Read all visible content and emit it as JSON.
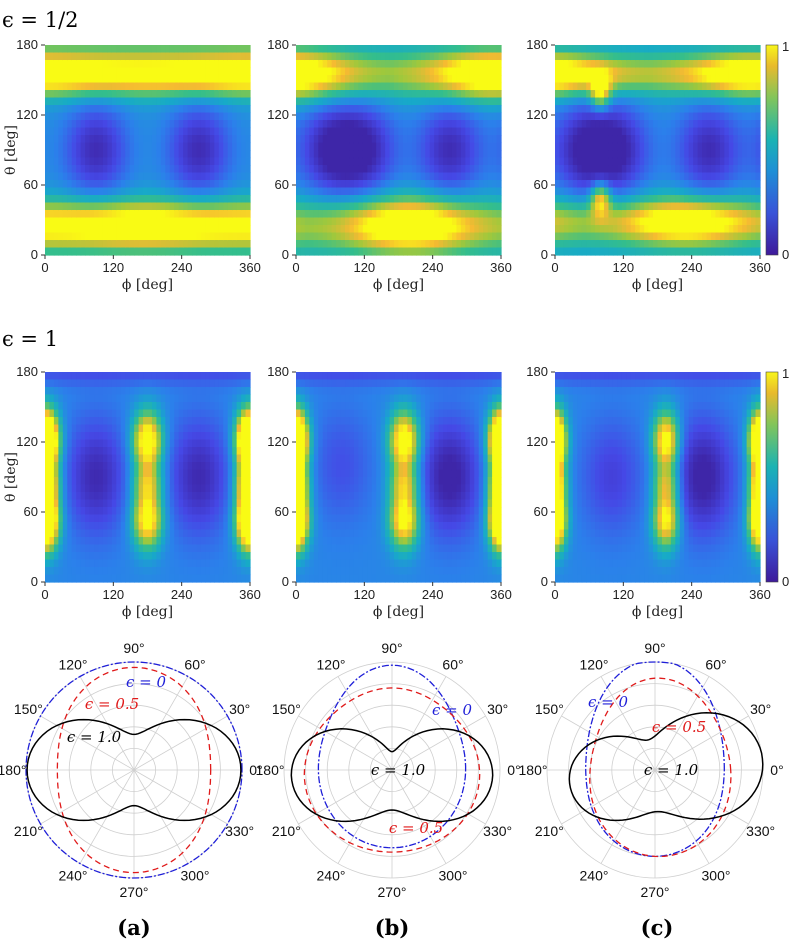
{
  "chart_data": {
    "type": "heatmap",
    "rows": [
      {
        "label": "ϵ = 1/2",
        "xlabel": "ϕ [deg]",
        "ylabel": "θ [deg]",
        "xticks": [
          "0",
          "120",
          "240",
          "360"
        ],
        "yticks": [
          "0",
          "60",
          "120",
          "180"
        ],
        "xlim": [
          0,
          360
        ],
        "ylim": [
          0,
          180
        ],
        "colorbar": {
          "min": "0",
          "max": "1"
        },
        "panels": [
          {
            "id": "a",
            "bands": [
              {
                "theta": 25,
                "width": 14,
                "amp": 0.85,
                "phi_peak": 170,
                "mod": 0.15
              },
              {
                "theta": 155,
                "width": 12,
                "amp": 0.85,
                "phi_peak": 350,
                "mod": 0.12
              },
              {
                "theta": 180,
                "width": 10,
                "amp": 0.15,
                "phi_peak": 0,
                "mod": 0.0
              }
            ],
            "wells": [
              {
                "phi": 90,
                "theta": 90,
                "depth": 0.35
              },
              {
                "phi": 270,
                "theta": 90,
                "depth": 0.35
              }
            ]
          },
          {
            "id": "b",
            "bands": [
              {
                "theta": 25,
                "width": 16,
                "amp": 0.9,
                "phi_peak": 200,
                "mod": 0.6
              },
              {
                "theta": 155,
                "width": 14,
                "amp": 0.9,
                "phi_peak": 345,
                "mod": 0.6
              }
            ],
            "wells": [
              {
                "phi": 60,
                "theta": 90,
                "depth": 0.35
              },
              {
                "phi": 120,
                "theta": 90,
                "depth": 0.35
              },
              {
                "phi": 270,
                "theta": 90,
                "depth": 0.35
              }
            ]
          },
          {
            "id": "c",
            "bands": [
              {
                "theta": 28,
                "width": 14,
                "amp": 0.85,
                "phi_peak": 230,
                "mod": 0.55
              },
              {
                "theta": 155,
                "width": 12,
                "amp": 0.9,
                "phi_peak": 345,
                "mod": 0.55
              }
            ],
            "wells": [
              {
                "phi": 50,
                "theta": 90,
                "depth": 0.35
              },
              {
                "phi": 110,
                "theta": 90,
                "depth": 0.35
              },
              {
                "phi": 270,
                "theta": 90,
                "depth": 0.35
              }
            ],
            "spots": [
              {
                "phi": 80,
                "theta": 140,
                "amp": 0.55
              },
              {
                "phi": 80,
                "theta": 48,
                "amp": 0.55
              }
            ]
          }
        ]
      },
      {
        "label": "ϵ = 1",
        "xlabel": "ϕ [deg]",
        "ylabel": "θ [deg]",
        "xticks": [
          "0",
          "120",
          "240",
          "360"
        ],
        "yticks": [
          "0",
          "60",
          "120",
          "180"
        ],
        "xlim": [
          0,
          360
        ],
        "ylim": [
          0,
          180
        ],
        "colorbar": {
          "min": "0",
          "max": "1"
        },
        "panels": [
          {
            "id": "a",
            "columns": [
              {
                "phi": 180,
                "width": 18,
                "amp": 0.95
              },
              {
                "phi": 360,
                "width": 16,
                "amp": 0.85
              },
              {
                "phi": 0,
                "width": 16,
                "amp": 0.85
              }
            ],
            "wells": [
              {
                "phi": 90,
                "theta": 90,
                "depth": 0.3
              },
              {
                "phi": 270,
                "theta": 90,
                "depth": 0.3
              }
            ]
          },
          {
            "id": "b",
            "columns": [
              {
                "phi": 190,
                "width": 18,
                "amp": 0.95
              },
              {
                "phi": 360,
                "width": 16,
                "amp": 0.9
              },
              {
                "phi": 0,
                "width": 12,
                "amp": 0.75
              }
            ],
            "wells": [
              {
                "phi": 270,
                "theta": 90,
                "depth": 0.35
              },
              {
                "phi": 80,
                "theta": 100,
                "depth": 0.15
              }
            ]
          },
          {
            "id": "c",
            "columns": [
              {
                "phi": 195,
                "width": 16,
                "amp": 0.9
              },
              {
                "phi": 360,
                "width": 14,
                "amp": 0.8
              },
              {
                "phi": 0,
                "width": 12,
                "amp": 0.6
              }
            ],
            "wells": [
              {
                "phi": 260,
                "theta": 90,
                "depth": 0.35
              },
              {
                "phi": 100,
                "theta": 90,
                "depth": 0.2
              }
            ]
          }
        ]
      }
    ],
    "polar": {
      "type": "polar-line",
      "angle_ticks": [
        "0°",
        "30°",
        "60°",
        "90°",
        "120°",
        "150°",
        "180°",
        "210°",
        "240°",
        "270°",
        "300°",
        "330°"
      ],
      "angles_deg": [
        0,
        30,
        60,
        90,
        120,
        150,
        180,
        210,
        240,
        270,
        300,
        330
      ],
      "series_style": [
        {
          "name": "ϵ = 0",
          "color": "#1f1fd8",
          "dash": "7 2 2 2"
        },
        {
          "name": "ϵ = 0.5",
          "color": "#e01a1a",
          "dash": "6 4"
        },
        {
          "name": "ϵ = 1.0",
          "color": "#000000",
          "dash": ""
        }
      ],
      "panels": [
        {
          "id": "a",
          "sublabel": "(a)",
          "labels": [
            {
              "text": "ϵ = 0",
              "color": "#1f1fd8"
            },
            {
              "text": "ϵ = 0.5",
              "color": "#e01a1a"
            },
            {
              "text": "ϵ = 1.0",
              "color": "#000000"
            }
          ],
          "series": [
            {
              "name": "ϵ = 0",
              "model": {
                "a0": 1.0,
                "a2": 0.0,
                "a1s": 0.0,
                "a1c": 0.0
              }
            },
            {
              "name": "ϵ = 0.5",
              "model": {
                "a0": 0.83,
                "a2": -0.12,
                "a1s": 0.0,
                "a1c": 0.0
              }
            },
            {
              "name": "ϵ = 1.0",
              "model": {
                "a0": 0.66,
                "a2": 0.33,
                "a1s": 0.0,
                "a1c": 0.0
              }
            }
          ]
        },
        {
          "id": "b",
          "sublabel": "(b)",
          "labels": [
            {
              "text": "ϵ = 0",
              "color": "#1f1fd8"
            },
            {
              "text": "ϵ = 0.5",
              "color": "#e01a1a"
            },
            {
              "text": "ϵ = 1.0",
              "color": "#000000"
            }
          ],
          "series": [
            {
              "name": "ϵ = 0",
              "model": {
                "a0": 0.7,
                "a2": -0.02,
                "a1s": 0.0,
                "a1c": 0.0,
                "a4": 0.25
              }
            },
            {
              "name": "ϵ = 0.5",
              "model": {
                "a0": 0.76,
                "a2": 0.05,
                "a1s": -0.05,
                "a1c": 0.0,
                "a4": 0.1
              }
            },
            {
              "name": "ϵ = 1.0",
              "model": {
                "a0": 0.6,
                "a2": 0.33,
                "a1s": -0.1,
                "a1c": 0.0
              }
            }
          ]
        },
        {
          "id": "c",
          "sublabel": "(c)",
          "labels": [
            {
              "text": "ϵ = 0",
              "color": "#1f1fd8"
            },
            {
              "text": "ϵ = 0.5",
              "color": "#e01a1a"
            },
            {
              "text": "ϵ = 1.0",
              "color": "#000000"
            }
          ],
          "series": [
            {
              "name": "ϵ = 0",
              "model": {
                "a0": 0.72,
                "a2": -0.08,
                "a1s": 0.0,
                "a1c": 0.0,
                "a4": 0.22
              }
            },
            {
              "name": "ϵ = 0.5",
              "model": {
                "a0": 0.7,
                "a2": -0.05,
                "a1s": -0.05,
                "a1c": 0.05,
                "a4": 0.15
              }
            },
            {
              "name": "ϵ = 1.0",
              "model": {
                "a0": 0.62,
                "a2": 0.28,
                "a1s": -0.05,
                "a1c": 0.1,
                "tilt": -8
              }
            }
          ]
        }
      ]
    }
  }
}
